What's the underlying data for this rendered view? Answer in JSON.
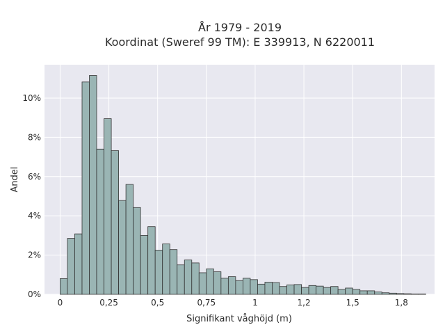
{
  "chart_data": {
    "type": "bar",
    "title_lines": [
      "År 1979 - 2019",
      "Koordinat (Sweref 99 TM): E 339913, N 6220011"
    ],
    "xlabel": "Signifikant våghöjd (m)",
    "ylabel": "Andel",
    "xlim": [
      -0.08,
      1.92
    ],
    "ylim": [
      0,
      11.7
    ],
    "x_ticks": [
      {
        "value": 0,
        "label": "0"
      },
      {
        "value": 0.25,
        "label": "0,25"
      },
      {
        "value": 0.5,
        "label": "0,5"
      },
      {
        "value": 0.75,
        "label": "0,75"
      },
      {
        "value": 1.0,
        "label": "1"
      },
      {
        "value": 1.25,
        "label": "1,2"
      },
      {
        "value": 1.5,
        "label": "1,5"
      },
      {
        "value": 1.75,
        "label": "1,8"
      }
    ],
    "y_ticks": [
      {
        "value": 0,
        "label": "0%"
      },
      {
        "value": 2,
        "label": "2%"
      },
      {
        "value": 4,
        "label": "4%"
      },
      {
        "value": 6,
        "label": "6%"
      },
      {
        "value": 8,
        "label": "8%"
      },
      {
        "value": 10,
        "label": "10%"
      }
    ],
    "bin_width": 0.0375,
    "bin_starts": [
      0,
      0.0375,
      0.075,
      0.1125,
      0.15,
      0.1875,
      0.225,
      0.2625,
      0.3,
      0.3375,
      0.375,
      0.4125,
      0.45,
      0.4875,
      0.525,
      0.5625,
      0.6,
      0.6375,
      0.675,
      0.7125,
      0.75,
      0.7875,
      0.825,
      0.8625,
      0.9,
      0.9375,
      0.975,
      1.0125,
      1.05,
      1.0875,
      1.125,
      1.1625,
      1.2,
      1.2375,
      1.275,
      1.3125,
      1.35,
      1.3875,
      1.425,
      1.4625,
      1.5,
      1.5375,
      1.575,
      1.6125,
      1.65,
      1.6875,
      1.725,
      1.7625,
      1.8,
      1.8375
    ],
    "values": [
      0.8,
      2.85,
      3.08,
      10.82,
      11.15,
      7.4,
      8.95,
      7.32,
      4.78,
      5.6,
      4.42,
      3.0,
      3.45,
      2.25,
      2.57,
      2.28,
      1.5,
      1.75,
      1.6,
      1.1,
      1.3,
      1.15,
      0.82,
      0.9,
      0.7,
      0.82,
      0.75,
      0.52,
      0.62,
      0.6,
      0.4,
      0.48,
      0.5,
      0.35,
      0.45,
      0.42,
      0.35,
      0.4,
      0.25,
      0.32,
      0.25,
      0.18,
      0.18,
      0.12,
      0.08,
      0.06,
      0.04,
      0.03,
      0.02,
      0.02
    ],
    "bar_color": "#9ab5b4",
    "bar_edge_color": "#333333",
    "background_color": "#e8e8f0",
    "grid": true,
    "grid_color": "#ffffff"
  }
}
